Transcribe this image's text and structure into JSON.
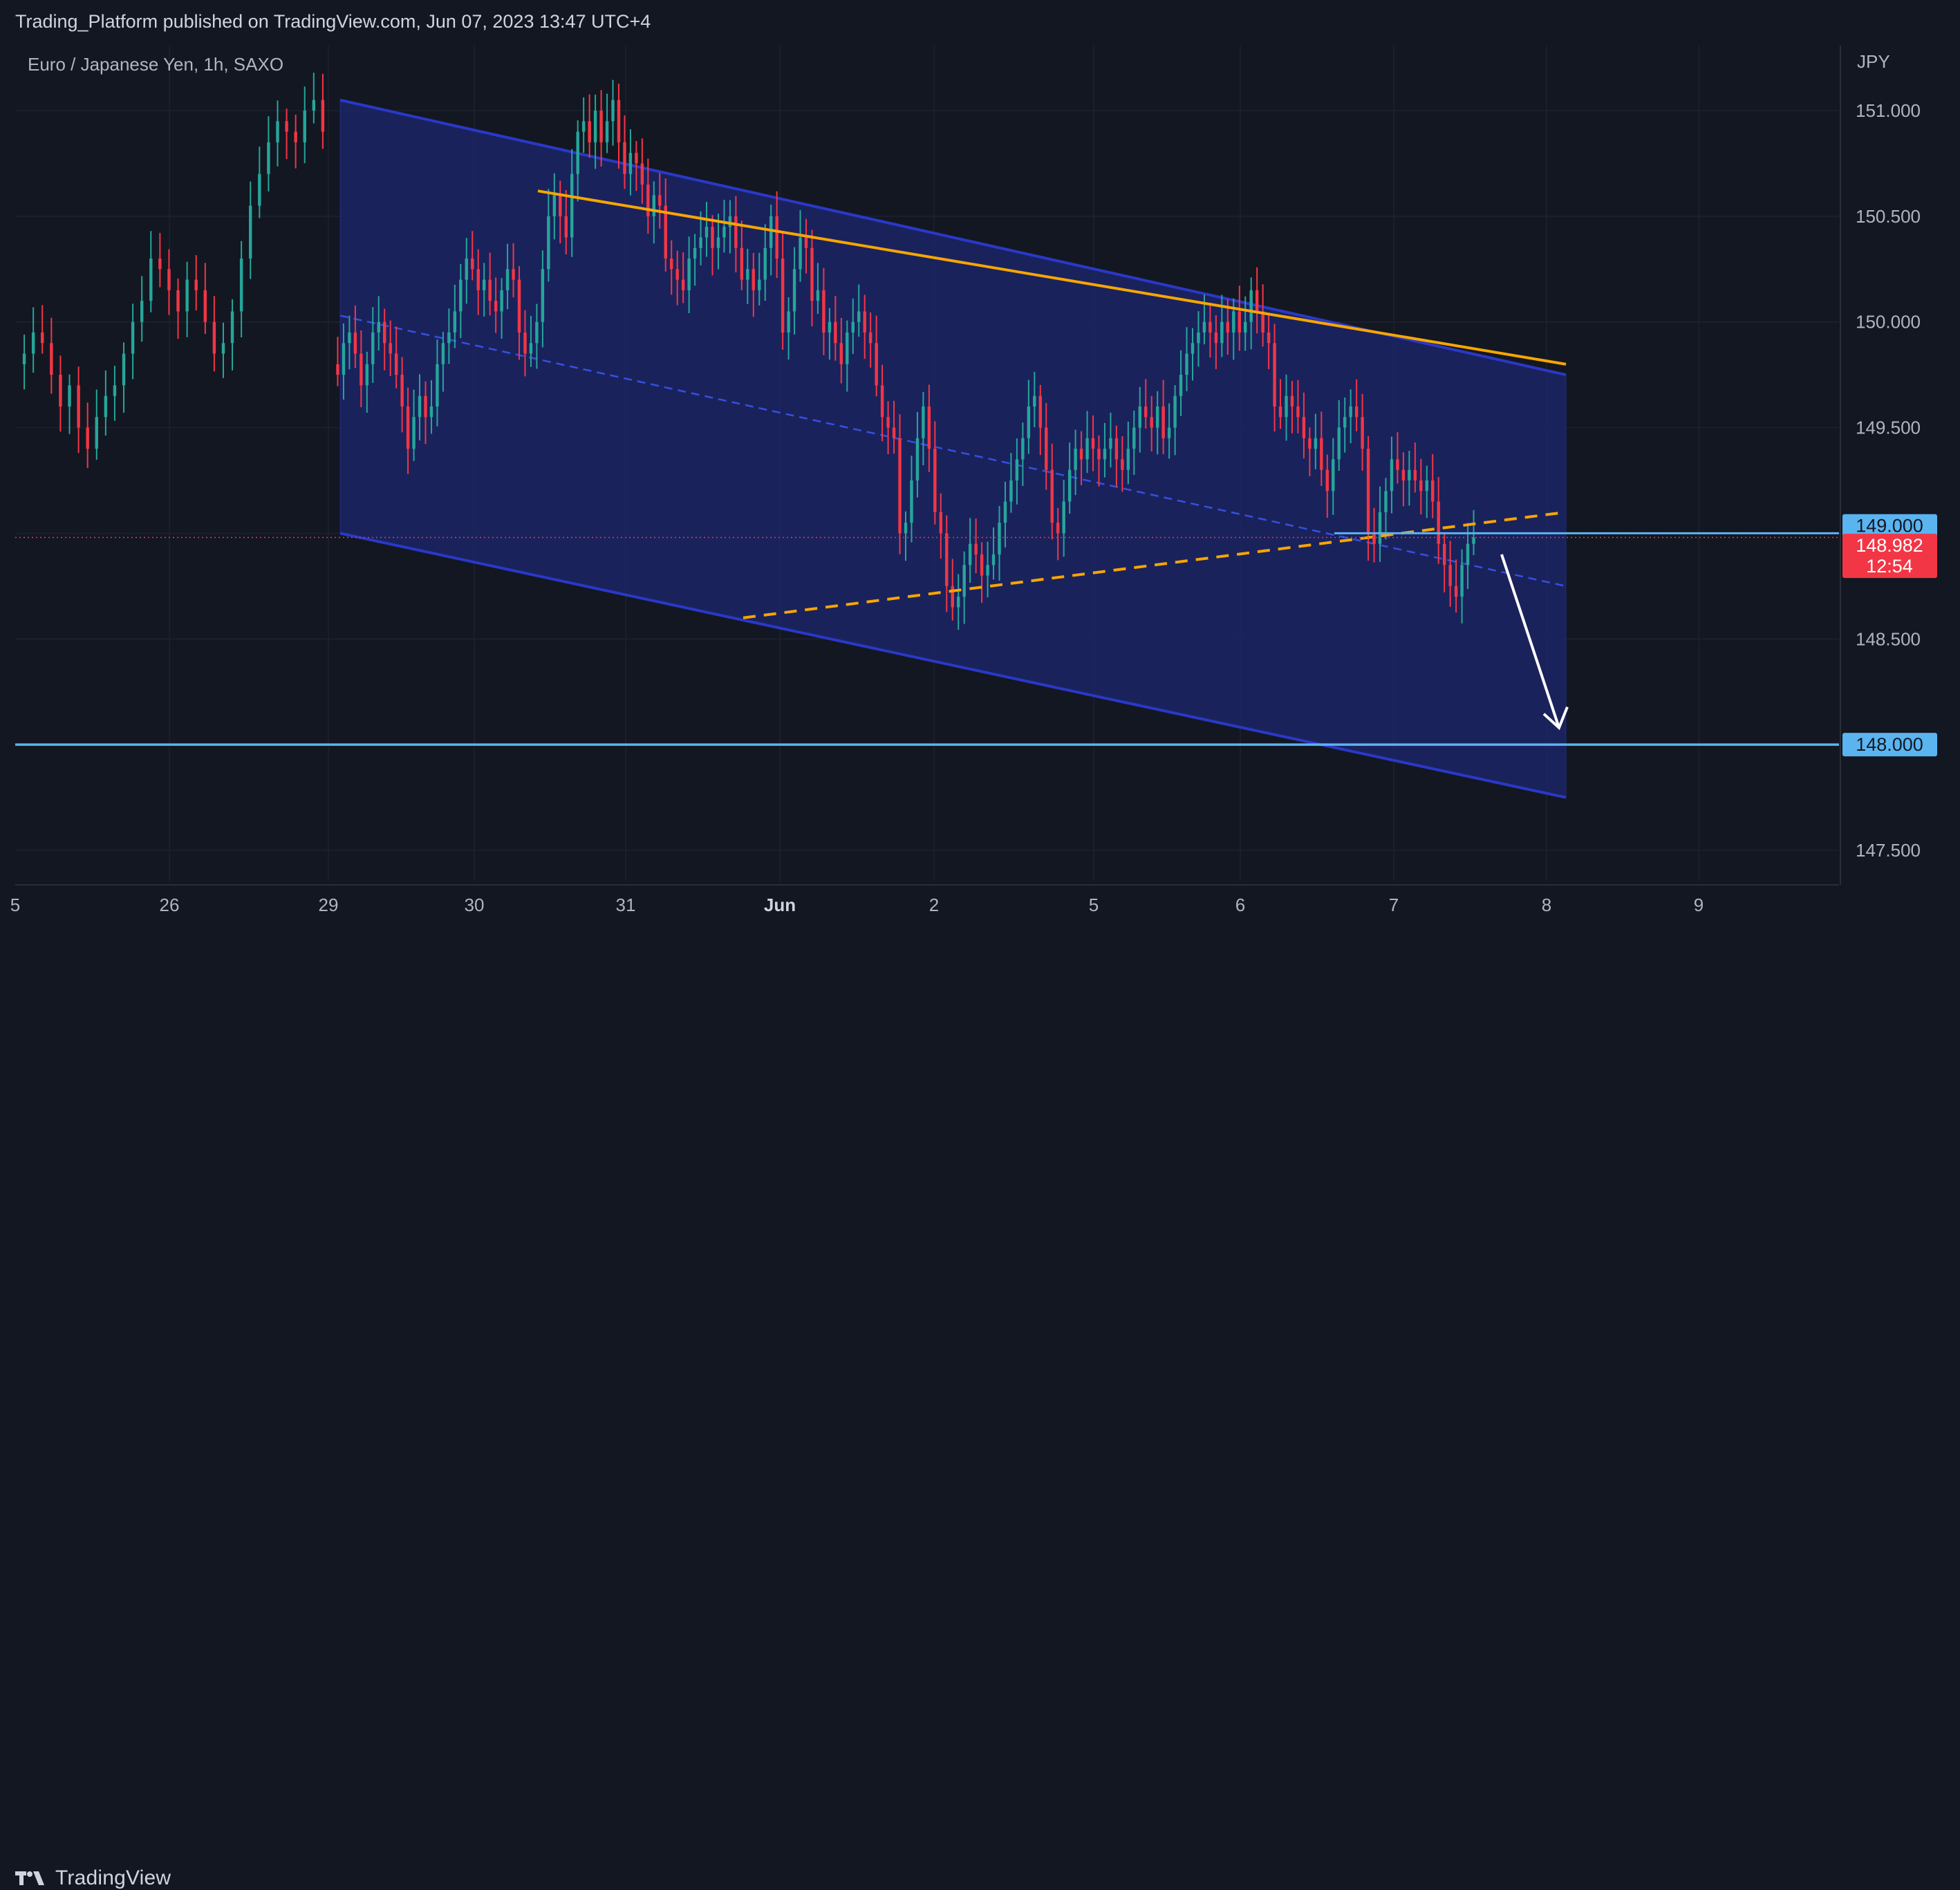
{
  "header": {
    "publish_line": "Trading_Platform published on TradingView.com, Jun 07, 2023 13:47 UTC+4"
  },
  "footer": {
    "logo_text": "TradingView"
  },
  "colors": {
    "background": "#131722",
    "grid": "#1e2230",
    "up_candle": "#26a69a",
    "down_candle": "#f23645",
    "channel_fill": "#1c2466",
    "channel_border": "#2a38c8",
    "resistance_line": "#f7a600",
    "level_line": "#5ab4f0",
    "arrow": "#ffffff"
  },
  "chart_data": {
    "type": "candlestick",
    "title": "Euro / Japanese Yen, 1h, SAXO",
    "currency": "JPY",
    "x_ticks": [
      "5",
      "26",
      "29",
      "30",
      "31",
      "Jun",
      "2",
      "5",
      "6",
      "7",
      "8",
      "9"
    ],
    "y_ticks": [
      "151.000",
      "150.500",
      "150.000",
      "149.500",
      "148.500",
      "147.500"
    ],
    "ylim": [
      147.35,
      151.4
    ],
    "bar_range": [
      0,
      240
    ],
    "last_price": "148.982",
    "countdown": "12:54",
    "price_labels": [
      "149.000",
      "148.000"
    ],
    "series": [
      {
        "name": "EURJPY",
        "close": [
          149.8,
          149.75,
          149.9,
          149.95,
          149.85,
          149.7,
          149.8,
          149.95,
          150.0,
          149.9,
          149.85,
          149.75,
          149.6,
          149.4,
          149.55,
          149.65,
          149.55,
          149.6,
          149.8,
          149.9,
          149.95,
          150.05,
          150.2,
          150.3,
          150.25,
          150.15,
          150.2,
          150.1,
          150.05,
          150.15,
          150.25,
          150.2,
          149.95,
          149.85,
          149.9,
          150.0,
          150.25,
          150.5,
          150.6,
          150.5,
          150.4,
          150.7,
          150.9,
          150.95,
          150.85,
          151.0,
          150.85,
          150.95,
          151.05,
          150.85,
          150.7,
          150.8,
          150.75,
          150.65,
          150.5,
          150.6,
          150.55,
          150.3,
          150.25,
          150.2,
          150.15,
          150.3,
          150.35,
          150.4,
          150.45,
          150.35,
          150.4,
          150.45,
          150.5,
          150.35,
          150.2,
          150.25,
          150.15,
          150.2,
          150.35,
          150.5,
          150.3,
          149.95,
          150.05,
          150.25,
          150.4,
          150.35,
          150.1,
          150.15,
          149.95,
          150.0,
          149.9,
          149.8,
          149.95,
          150.0,
          150.05,
          149.95,
          149.9,
          149.7,
          149.55,
          149.5,
          149.45,
          149.0,
          149.05,
          149.25,
          149.45,
          149.6,
          149.4,
          149.1,
          149.0,
          148.75,
          148.65,
          148.7,
          148.85,
          148.95,
          148.9,
          148.8,
          148.85,
          148.9,
          149.05,
          149.15,
          149.25,
          149.35,
          149.45,
          149.6,
          149.65,
          149.5,
          149.3,
          149.05,
          149.0,
          149.15,
          149.3,
          149.4,
          149.35,
          149.45,
          149.4,
          149.35,
          149.4,
          149.45,
          149.35,
          149.3,
          149.4,
          149.5,
          149.6,
          149.55,
          149.5,
          149.6,
          149.45,
          149.5,
          149.65,
          149.75,
          149.85,
          149.9,
          149.95,
          150.0,
          149.95,
          149.9,
          150.0,
          149.95,
          150.05,
          149.95,
          150.0,
          150.15,
          150.05,
          149.95,
          149.9,
          149.6,
          149.55,
          149.65,
          149.6,
          149.55,
          149.45,
          149.4,
          149.45,
          149.3,
          149.2,
          149.35,
          149.5,
          149.55,
          149.6,
          149.55,
          149.4,
          149.0,
          148.95,
          149.1,
          149.2,
          149.35,
          149.3,
          149.25,
          149.3,
          149.25,
          149.2,
          149.25,
          149.15,
          148.95,
          148.85,
          148.75,
          148.7,
          148.85,
          148.95,
          148.98
        ],
        "note": "closes are approximate readings of the visible candles"
      }
    ],
    "annotations": {
      "channel": {
        "upper_start": [
          0,
          151.05
        ],
        "upper_end": [
          240,
          149.75
        ],
        "lower_start": [
          0,
          149.0
        ],
        "lower_end": [
          240,
          147.75
        ],
        "mid_start": [
          0,
          150.03
        ],
        "mid_end": [
          240,
          148.75
        ]
      },
      "resistance": {
        "start": [
          31,
          150.62
        ],
        "end": [
          240,
          149.8
        ]
      },
      "rising_support": {
        "start": [
          63,
          148.6
        ],
        "end": [
          240,
          149.1
        ]
      },
      "level_149": 149.0,
      "level_148": 148.0,
      "arrow": {
        "start": [
          226,
          148.9
        ],
        "end": [
          232,
          148.08
        ]
      }
    }
  }
}
